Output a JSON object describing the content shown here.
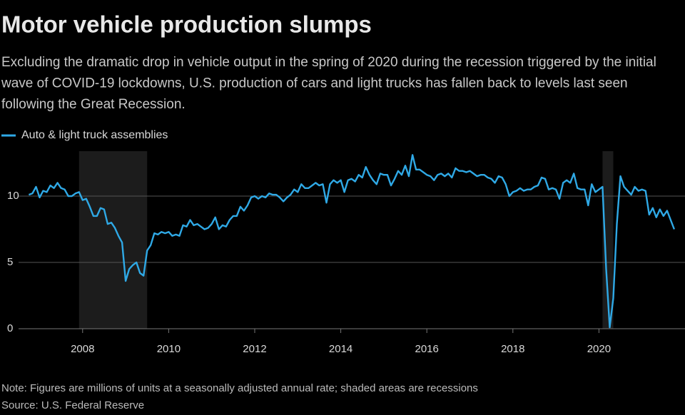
{
  "chart_data": {
    "type": "line",
    "title": "Motor vehicle production slumps",
    "subtitle": "Excluding the dramatic drop in vehicle output in the spring of 2020 during the recession triggered by the initial wave of COVID-19 lockdowns, U.S. production of cars and light trucks has fallen back to levels last seen following the Great Recession.",
    "note": "Note: Figures are millions of units at a seasonally adjusted annual rate; shaded areas are recessions",
    "source": "Source: U.S. Federal Reserve",
    "xlim": [
      2006.08,
      2022.0
    ],
    "xticks": [
      2008,
      2010,
      2012,
      2014,
      2016,
      2018,
      2020
    ],
    "ylim": [
      0,
      14
    ],
    "yticks": [
      0,
      5,
      10
    ],
    "grid": true,
    "recessions": [
      [
        2007.917,
        2009.5
      ],
      [
        2020.083,
        2020.333
      ]
    ],
    "x": [
      2006.75,
      2006.833,
      2006.917,
      2007.0,
      2007.083,
      2007.167,
      2007.25,
      2007.333,
      2007.417,
      2007.5,
      2007.583,
      2007.667,
      2007.75,
      2007.833,
      2007.917,
      2008.0,
      2008.083,
      2008.167,
      2008.25,
      2008.333,
      2008.417,
      2008.5,
      2008.583,
      2008.667,
      2008.75,
      2008.833,
      2008.917,
      2009.0,
      2009.083,
      2009.167,
      2009.25,
      2009.333,
      2009.417,
      2009.5,
      2009.583,
      2009.667,
      2009.75,
      2009.833,
      2009.917,
      2010.0,
      2010.083,
      2010.167,
      2010.25,
      2010.333,
      2010.417,
      2010.5,
      2010.583,
      2010.667,
      2010.75,
      2010.833,
      2010.917,
      2011.0,
      2011.083,
      2011.167,
      2011.25,
      2011.333,
      2011.417,
      2011.5,
      2011.583,
      2011.667,
      2011.75,
      2011.833,
      2011.917,
      2012.0,
      2012.083,
      2012.167,
      2012.25,
      2012.333,
      2012.417,
      2012.5,
      2012.583,
      2012.667,
      2012.75,
      2012.833,
      2012.917,
      2013.0,
      2013.083,
      2013.167,
      2013.25,
      2013.333,
      2013.417,
      2013.5,
      2013.583,
      2013.667,
      2013.75,
      2013.833,
      2013.917,
      2014.0,
      2014.083,
      2014.167,
      2014.25,
      2014.333,
      2014.417,
      2014.5,
      2014.583,
      2014.667,
      2014.75,
      2014.833,
      2014.917,
      2015.0,
      2015.083,
      2015.167,
      2015.25,
      2015.333,
      2015.417,
      2015.5,
      2015.583,
      2015.667,
      2015.75,
      2015.833,
      2015.917,
      2016.0,
      2016.083,
      2016.167,
      2016.25,
      2016.333,
      2016.417,
      2016.5,
      2016.583,
      2016.667,
      2016.75,
      2016.833,
      2016.917,
      2017.0,
      2017.083,
      2017.167,
      2017.25,
      2017.333,
      2017.417,
      2017.5,
      2017.583,
      2017.667,
      2017.75,
      2017.833,
      2017.917,
      2018.0,
      2018.083,
      2018.167,
      2018.25,
      2018.333,
      2018.417,
      2018.5,
      2018.583,
      2018.667,
      2018.75,
      2018.833,
      2018.917,
      2019.0,
      2019.083,
      2019.167,
      2019.25,
      2019.333,
      2019.417,
      2019.5,
      2019.583,
      2019.667,
      2019.75,
      2019.833,
      2019.917,
      2020.0,
      2020.083,
      2020.167,
      2020.25,
      2020.333,
      2020.417,
      2020.5,
      2020.583,
      2020.667,
      2020.75,
      2020.833,
      2020.917,
      2021.0,
      2021.083,
      2021.167,
      2021.25,
      2021.333,
      2021.417,
      2021.5,
      2021.583,
      2021.667,
      2021.75
    ],
    "series": [
      {
        "name": "Auto & light truck assemblies",
        "color": "#2fa9e6",
        "values": [
          10.1,
          10.2,
          10.7,
          9.9,
          10.4,
          10.3,
          10.8,
          10.6,
          11.0,
          10.6,
          10.5,
          10.0,
          10.0,
          10.2,
          10.3,
          9.7,
          9.8,
          9.2,
          8.5,
          8.5,
          9.1,
          9.0,
          7.9,
          8.0,
          7.6,
          7.0,
          6.5,
          3.6,
          4.5,
          4.8,
          5.0,
          4.2,
          4.0,
          5.9,
          6.3,
          7.2,
          7.1,
          7.3,
          7.2,
          7.3,
          7.0,
          7.1,
          7.0,
          7.8,
          7.7,
          8.2,
          7.8,
          7.9,
          7.7,
          7.5,
          7.6,
          7.9,
          8.4,
          7.5,
          7.8,
          7.7,
          8.2,
          8.5,
          8.5,
          9.2,
          8.9,
          9.3,
          9.9,
          10.0,
          9.8,
          10.0,
          9.9,
          10.2,
          10.1,
          10.1,
          9.9,
          9.6,
          9.9,
          10.1,
          10.5,
          10.3,
          10.9,
          10.6,
          10.6,
          10.8,
          11.0,
          10.8,
          10.9,
          9.5,
          10.9,
          11.2,
          11.0,
          11.2,
          10.3,
          11.2,
          11.3,
          11.1,
          11.6,
          11.4,
          12.2,
          11.6,
          11.2,
          10.9,
          11.7,
          11.6,
          11.6,
          10.8,
          11.3,
          11.9,
          11.6,
          12.3,
          11.5,
          13.1,
          12.0,
          12.0,
          11.8,
          11.6,
          11.5,
          11.2,
          11.6,
          11.7,
          11.5,
          11.7,
          11.4,
          12.1,
          11.9,
          11.9,
          11.8,
          11.9,
          11.7,
          11.5,
          11.6,
          11.6,
          11.4,
          11.3,
          11.0,
          11.5,
          11.4,
          10.9,
          10.0,
          10.3,
          10.4,
          10.6,
          10.4,
          10.5,
          10.5,
          10.7,
          10.8,
          11.4,
          11.3,
          10.5,
          10.6,
          10.5,
          9.8,
          11.0,
          11.2,
          11.0,
          11.7,
          10.6,
          10.5,
          10.5,
          9.3,
          10.9,
          10.3,
          10.5,
          10.7,
          4.5,
          0.1,
          2.3,
          7.9,
          11.5,
          10.7,
          10.4,
          10.1,
          10.7,
          10.4,
          10.5,
          10.4,
          8.6,
          9.1,
          8.4,
          9.0,
          8.5,
          8.9,
          8.2,
          7.5
        ]
      }
    ]
  }
}
